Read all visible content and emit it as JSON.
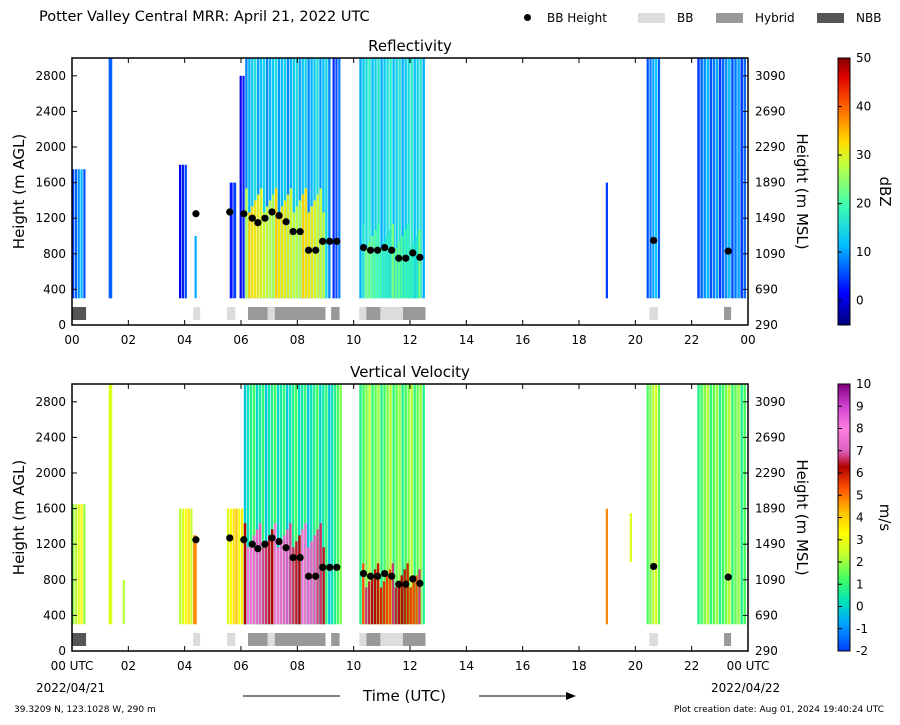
{
  "title": "Potter Valley Central MRR:  April 21, 2022 UTC",
  "legend": [
    {
      "label": "BB Height",
      "kind": "dot",
      "color": "#000000"
    },
    {
      "label": "BB",
      "kind": "swatch",
      "color": "#dcdcdc"
    },
    {
      "label": "Hybrid",
      "kind": "swatch",
      "color": "#999999"
    },
    {
      "label": "NBB",
      "kind": "swatch",
      "color": "#555555"
    }
  ],
  "footer": {
    "location": "39.3209 N, 123.1028 W, 290 m",
    "created": "Plot creation date: Aug 01, 2024 19:40:24 UTC",
    "time_label": "Time (UTC)",
    "date_start": "2022/04/21",
    "date_end": "2022/04/22"
  },
  "chart_data": [
    {
      "type": "heatmap",
      "title": "Reflectivity",
      "ylabel": "Height (m AGL)",
      "ylabel_right": "Height (m MSL)",
      "colorbar_label": "dBZ",
      "colorbar_ticks": [
        0,
        10,
        20,
        30,
        40,
        50
      ],
      "colorbar_range": [
        -5,
        50
      ],
      "xlim": [
        0,
        24
      ],
      "ylim": [
        0,
        3000
      ],
      "x_ticks": [
        "00",
        "02",
        "04",
        "06",
        "08",
        "10",
        "12",
        "14",
        "16",
        "18",
        "20",
        "22",
        "00"
      ],
      "y_ticks": [
        0,
        400,
        800,
        1200,
        1600,
        2000,
        2400,
        2800
      ],
      "y_ticks_right": [
        290,
        690,
        1090,
        1490,
        1890,
        2290,
        2690,
        3090
      ],
      "precip_segments": [
        {
          "start": 0.0,
          "end": 0.5,
          "base": 300,
          "top": 1750,
          "value": 8
        },
        {
          "start": 1.3,
          "end": 1.45,
          "base": 300,
          "top": 3000,
          "value": 10
        },
        {
          "start": 3.8,
          "end": 4.1,
          "base": 300,
          "top": 1800,
          "value": 4
        },
        {
          "start": 4.35,
          "end": 4.45,
          "base": 300,
          "top": 1000,
          "value": 14
        },
        {
          "start": 5.6,
          "end": 5.85,
          "base": 300,
          "top": 1600,
          "value": 6
        },
        {
          "start": 5.95,
          "end": 6.15,
          "base": 300,
          "top": 2800,
          "value": 4
        },
        {
          "start": 6.15,
          "end": 9.2,
          "base": 300,
          "top": 3000,
          "value": 12
        },
        {
          "start": 9.25,
          "end": 9.55,
          "base": 300,
          "top": 3000,
          "value": 7
        },
        {
          "start": 10.2,
          "end": 12.55,
          "base": 300,
          "top": 3000,
          "value": 14
        },
        {
          "start": 18.95,
          "end": 19.05,
          "base": 300,
          "top": 1600,
          "value": 8
        },
        {
          "start": 20.4,
          "end": 20.9,
          "base": 300,
          "top": 3000,
          "value": 9
        },
        {
          "start": 22.2,
          "end": 23.95,
          "base": 300,
          "top": 3000,
          "value": 8
        }
      ],
      "intense_regions": [
        {
          "start": 6.15,
          "end": 9.0,
          "base": 300,
          "top": 1400,
          "value": 30
        },
        {
          "start": 10.3,
          "end": 12.4,
          "base": 300,
          "top": 1000,
          "value": 20
        }
      ],
      "bb_height": {
        "x": [
          4.4,
          5.6,
          6.1,
          6.4,
          6.6,
          6.85,
          7.1,
          7.35,
          7.6,
          7.85,
          8.1,
          8.4,
          8.65,
          8.9,
          9.15,
          9.4,
          10.35,
          10.6,
          10.85,
          11.1,
          11.35,
          11.6,
          11.85,
          12.1,
          12.35,
          20.65,
          23.3
        ],
        "y": [
          1250,
          1270,
          1250,
          1200,
          1150,
          1200,
          1270,
          1230,
          1160,
          1050,
          1050,
          840,
          840,
          940,
          940,
          940,
          870,
          840,
          840,
          870,
          840,
          750,
          750,
          810,
          760,
          950,
          830
        ]
      },
      "bb_type": [
        {
          "start": 0.0,
          "end": 0.5,
          "type": "NBB"
        },
        {
          "start": 4.3,
          "end": 4.55,
          "type": "BB"
        },
        {
          "start": 5.5,
          "end": 5.8,
          "type": "BB"
        },
        {
          "start": 6.25,
          "end": 6.95,
          "type": "Hybrid"
        },
        {
          "start": 6.95,
          "end": 7.2,
          "type": "BB"
        },
        {
          "start": 7.2,
          "end": 9.0,
          "type": "Hybrid"
        },
        {
          "start": 9.2,
          "end": 9.5,
          "type": "Hybrid"
        },
        {
          "start": 10.2,
          "end": 10.45,
          "type": "BB"
        },
        {
          "start": 10.45,
          "end": 10.95,
          "type": "Hybrid"
        },
        {
          "start": 10.95,
          "end": 11.75,
          "type": "BB"
        },
        {
          "start": 11.75,
          "end": 12.55,
          "type": "Hybrid"
        },
        {
          "start": 20.5,
          "end": 20.8,
          "type": "BB"
        },
        {
          "start": 23.15,
          "end": 23.4,
          "type": "Hybrid"
        }
      ]
    },
    {
      "type": "heatmap",
      "title": "Vertical Velocity",
      "ylabel": "Height (m AGL)",
      "ylabel_right": "Height (m MSL)",
      "colorbar_label": "m/s",
      "colorbar_ticks": [
        -2,
        -1,
        0,
        1,
        2,
        3,
        4,
        5,
        6,
        7,
        8,
        9,
        10
      ],
      "colorbar_range": [
        -2,
        10
      ],
      "xlim": [
        0,
        24
      ],
      "ylim": [
        0,
        3000
      ],
      "x_ticks": [
        "00 UTC",
        "02",
        "04",
        "06",
        "08",
        "10",
        "12",
        "14",
        "16",
        "18",
        "20",
        "22",
        "00 UTC"
      ],
      "y_ticks": [
        0,
        400,
        800,
        1200,
        1600,
        2000,
        2400,
        2800
      ],
      "y_ticks_right": [
        290,
        690,
        1090,
        1490,
        1890,
        2290,
        2690,
        3090
      ],
      "precip_segments": [
        {
          "start": 0.0,
          "end": 0.5,
          "base": 300,
          "top": 1650,
          "value": 2.5
        },
        {
          "start": 1.3,
          "end": 1.45,
          "base": 300,
          "top": 3000,
          "value": 3.5
        },
        {
          "start": 1.8,
          "end": 1.9,
          "base": 300,
          "top": 800,
          "value": 3.0
        },
        {
          "start": 3.8,
          "end": 4.3,
          "base": 300,
          "top": 1600,
          "value": 3.0
        },
        {
          "start": 4.3,
          "end": 4.45,
          "base": 300,
          "top": 1300,
          "value": 5.5
        },
        {
          "start": 5.5,
          "end": 6.1,
          "base": 300,
          "top": 1600,
          "value": 3.5
        },
        {
          "start": 6.1,
          "end": 9.2,
          "base": 300,
          "top": 3000,
          "value": 0.5
        },
        {
          "start": 9.2,
          "end": 9.6,
          "base": 300,
          "top": 3000,
          "value": 1.0
        },
        {
          "start": 10.2,
          "end": 12.55,
          "base": 300,
          "top": 3000,
          "value": 1.5
        },
        {
          "start": 18.95,
          "end": 19.05,
          "base": 300,
          "top": 1600,
          "value": 5.5
        },
        {
          "start": 19.8,
          "end": 19.9,
          "base": 1000,
          "top": 1550,
          "value": 3.5
        },
        {
          "start": 20.4,
          "end": 20.9,
          "base": 300,
          "top": 3000,
          "value": 2.0
        },
        {
          "start": 22.2,
          "end": 23.95,
          "base": 300,
          "top": 3000,
          "value": 1.5
        }
      ],
      "intense_regions": [
        {
          "start": 6.1,
          "end": 9.0,
          "base": 300,
          "top": 1300,
          "value": 7.0
        },
        {
          "start": 10.3,
          "end": 12.4,
          "base": 300,
          "top": 850,
          "value": 6.0
        }
      ],
      "bb_height": {
        "x": [
          4.4,
          5.6,
          6.1,
          6.4,
          6.6,
          6.85,
          7.1,
          7.35,
          7.6,
          7.85,
          8.1,
          8.4,
          8.65,
          8.9,
          9.15,
          9.4,
          10.35,
          10.6,
          10.85,
          11.1,
          11.35,
          11.6,
          11.85,
          12.1,
          12.35,
          20.65,
          23.3
        ],
        "y": [
          1250,
          1270,
          1250,
          1200,
          1150,
          1200,
          1270,
          1230,
          1160,
          1050,
          1050,
          840,
          840,
          940,
          940,
          940,
          870,
          840,
          840,
          870,
          840,
          750,
          750,
          810,
          760,
          950,
          830
        ]
      },
      "bb_type": [
        {
          "start": 0.0,
          "end": 0.5,
          "type": "NBB"
        },
        {
          "start": 4.3,
          "end": 4.55,
          "type": "BB"
        },
        {
          "start": 5.5,
          "end": 5.8,
          "type": "BB"
        },
        {
          "start": 6.25,
          "end": 6.95,
          "type": "Hybrid"
        },
        {
          "start": 6.95,
          "end": 7.2,
          "type": "BB"
        },
        {
          "start": 7.2,
          "end": 9.0,
          "type": "Hybrid"
        },
        {
          "start": 9.2,
          "end": 9.5,
          "type": "Hybrid"
        },
        {
          "start": 10.2,
          "end": 10.45,
          "type": "BB"
        },
        {
          "start": 10.45,
          "end": 10.95,
          "type": "Hybrid"
        },
        {
          "start": 10.95,
          "end": 11.75,
          "type": "BB"
        },
        {
          "start": 11.75,
          "end": 12.55,
          "type": "Hybrid"
        },
        {
          "start": 20.5,
          "end": 20.8,
          "type": "BB"
        },
        {
          "start": 23.15,
          "end": 23.4,
          "type": "Hybrid"
        }
      ]
    }
  ]
}
